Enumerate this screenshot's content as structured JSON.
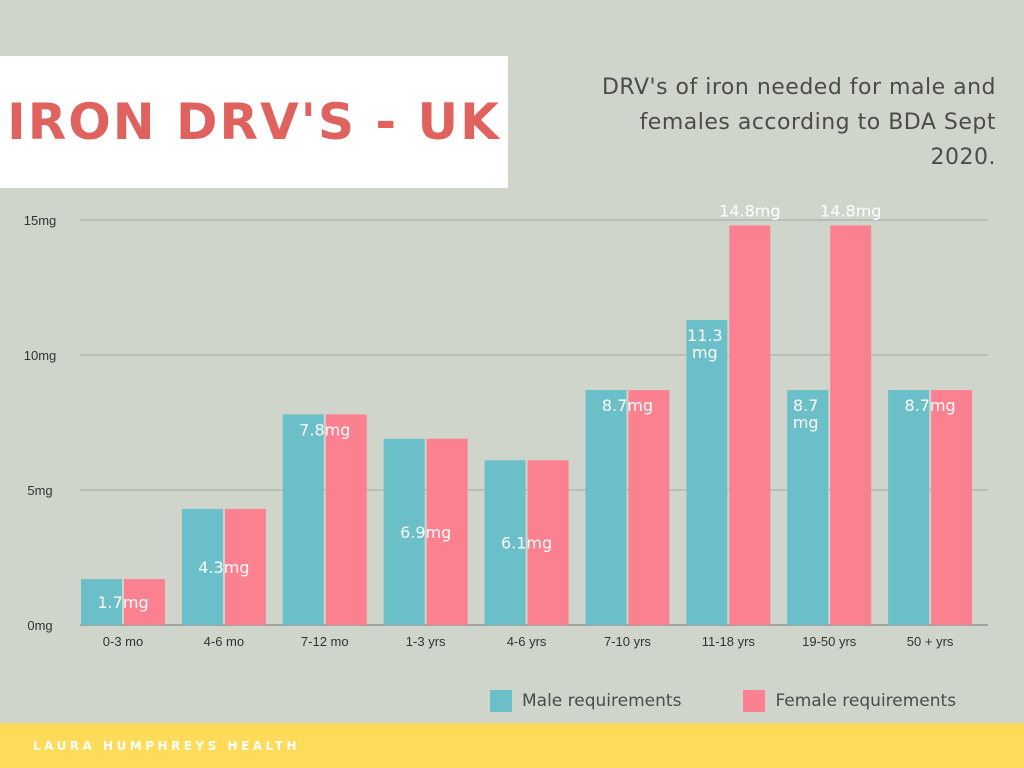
{
  "header": {
    "title": "IRON DRV'S - UK",
    "subtitle": "DRV's of iron needed for male and females according to BDA Sept 2020."
  },
  "footer": {
    "brand": "LAURA HUMPHREYS HEALTH"
  },
  "colors": {
    "male": "#6bbfc8",
    "female": "#fc8190",
    "title": "#e0625e",
    "footer": "#fedc5a"
  },
  "chart_data": {
    "type": "bar",
    "categories": [
      "0-3 mo",
      "4-6 mo",
      "7-12 mo",
      "1-3 yrs",
      "4-6 yrs",
      "7-10 yrs",
      "11-18 yrs",
      "19-50 yrs",
      "50 + yrs"
    ],
    "series": [
      {
        "name": "Male requirements",
        "values": [
          1.7,
          4.3,
          7.8,
          6.9,
          6.1,
          8.7,
          11.3,
          8.7,
          8.7
        ]
      },
      {
        "name": "Female requirements",
        "values": [
          1.7,
          4.3,
          7.8,
          6.9,
          6.1,
          8.7,
          14.8,
          14.8,
          8.7
        ]
      }
    ],
    "data_labels": [
      "1.7mg",
      "4.3mg",
      "7.8mg",
      "6.9mg",
      "6.1mg",
      "8.7mg",
      "11.3 mg",
      "14.8mg",
      "8.7 mg",
      "14.8mg",
      "8.7mg"
    ],
    "yticks": [
      "0mg",
      "5mg",
      "10mg",
      "15mg"
    ],
    "ylim": [
      0,
      15
    ],
    "grid": true,
    "legend": "bottom-right"
  }
}
